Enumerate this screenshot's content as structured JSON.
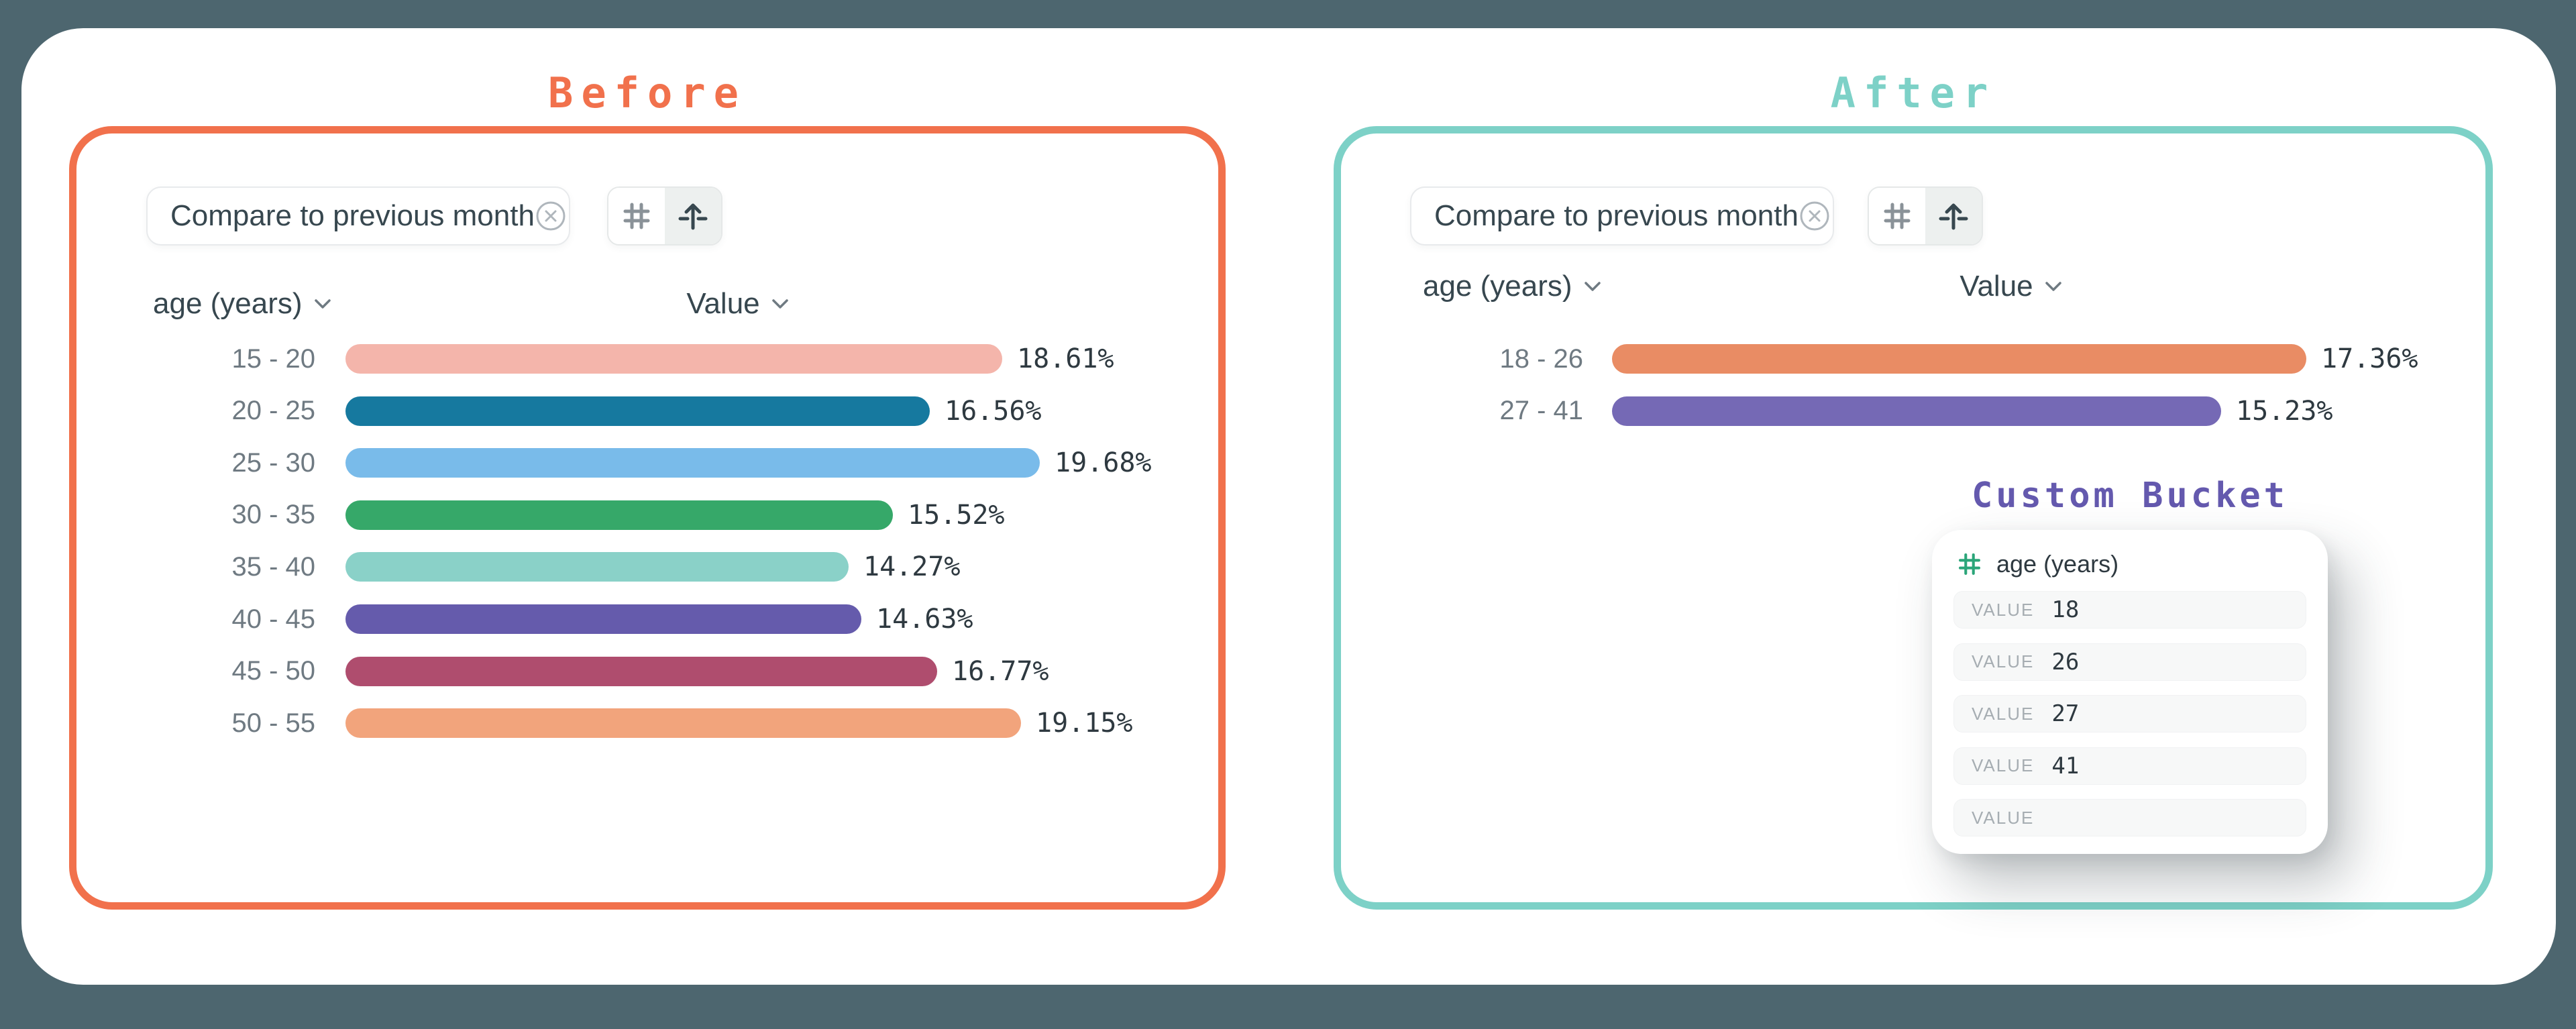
{
  "colors": {
    "page_background": "#4D666F",
    "card_background": "#FFFFFF",
    "before_accent": "#F1714C",
    "after_accent": "#7DD1C7",
    "custom_bucket_accent": "#6459AE",
    "field_hash_green": "#2BA579",
    "dark_text": "#37474F",
    "muted_text": "#6F7A82"
  },
  "panels": {
    "before": {
      "title": "Before",
      "toolbar": {
        "chip_label": "Compare to previous month",
        "chip_close_icon": "circle-x-icon",
        "buttons": [
          {
            "icon": "hash-icon",
            "active": false
          },
          {
            "icon": "arrow-up-from-baseline-icon",
            "active": true
          }
        ]
      },
      "columns": {
        "dimension": "age (years)",
        "measure": "Value"
      }
    },
    "after": {
      "title": "After",
      "toolbar": {
        "chip_label": "Compare to previous month",
        "chip_close_icon": "circle-x-icon",
        "buttons": [
          {
            "icon": "hash-icon",
            "active": false
          },
          {
            "icon": "arrow-up-from-baseline-icon",
            "active": true
          }
        ]
      },
      "columns": {
        "dimension": "age (years)",
        "measure": "Value"
      }
    }
  },
  "chart_data": [
    {
      "type": "bar",
      "orientation": "horizontal",
      "title": "Before",
      "xlabel": "Value",
      "ylabel": "age (years)",
      "categories": [
        "15 - 20",
        "20 - 25",
        "25 - 30",
        "30 - 35",
        "35 - 40",
        "40 - 45",
        "45 - 50",
        "50 - 55"
      ],
      "values": [
        18.61,
        16.56,
        19.68,
        15.52,
        14.27,
        14.63,
        16.77,
        19.15
      ],
      "labels": [
        "18.61%",
        "16.56%",
        "19.68%",
        "15.52%",
        "14.27%",
        "14.63%",
        "16.77%",
        "19.15%"
      ],
      "colors": [
        "#F4B5AB",
        "#16799F",
        "#79BBEA",
        "#36A869",
        "#8AD1C8",
        "#655BAC",
        "#AF4D6E",
        "#F2A47C"
      ],
      "xlim": [
        0,
        19.68
      ],
      "grid": false,
      "legend": "none"
    },
    {
      "type": "bar",
      "orientation": "horizontal",
      "title": "After",
      "xlabel": "Value",
      "ylabel": "age (years)",
      "categories": [
        "18 - 26",
        "27 - 41"
      ],
      "values": [
        17.36,
        15.23
      ],
      "labels": [
        "17.36%",
        "15.23%"
      ],
      "colors": [
        "#E98C64",
        "#7569B5"
      ],
      "xlim": [
        0,
        17.36
      ],
      "grid": false,
      "legend": "none"
    }
  ],
  "custom_bucket": {
    "title": "Custom Bucket",
    "field_icon": "hash-icon",
    "field_name": "age (years)",
    "rows": [
      {
        "label": "VALUE",
        "value": "18"
      },
      {
        "label": "VALUE",
        "value": "26"
      },
      {
        "label": "VALUE",
        "value": "27"
      },
      {
        "label": "VALUE",
        "value": "41"
      },
      {
        "label": "VALUE",
        "value": ""
      }
    ]
  }
}
